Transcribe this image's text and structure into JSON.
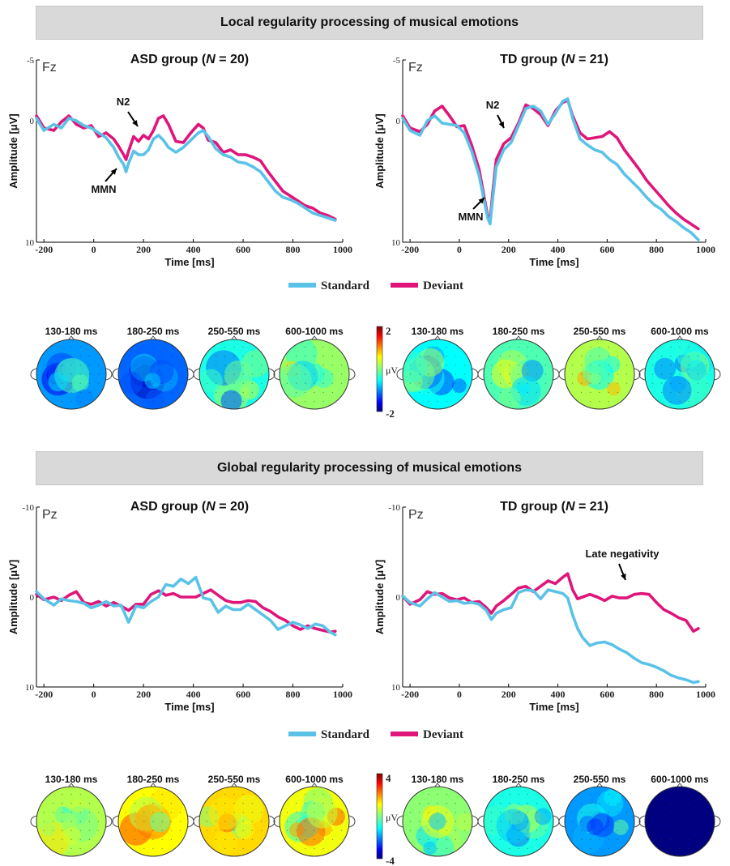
{
  "sections": [
    {
      "title": "Local regularity processing of musical emotions",
      "legend": {
        "standard": "Standard",
        "deviant": "Deviant"
      },
      "topo_scale": {
        "max": "2",
        "min": "-2",
        "unit": "μV"
      }
    },
    {
      "title": "Global regularity processing of musical emotions",
      "legend": {
        "standard": "Standard",
        "deviant": "Deviant"
      },
      "topo_scale": {
        "max": "4",
        "min": "-4",
        "unit": "μV"
      }
    }
  ],
  "colors": {
    "standard": "#5bc2e7",
    "deviant": "#e0157a"
  },
  "chart_data": [
    {
      "type": "line",
      "electrode": "Fz",
      "title_prefix": "ASD group (",
      "title_n": "N",
      "title_suffix": " = 20)",
      "xlabel": "Time [ms]",
      "ylabel": "Amplitude [μV]",
      "xlim": [
        -230,
        1000
      ],
      "ylim": [
        -5,
        10
      ],
      "y_inverted": true,
      "xticks": [
        "-200",
        "0",
        "200",
        "400",
        "600",
        "800",
        "1000"
      ],
      "yticks": [
        "-5",
        "0",
        "10"
      ],
      "series": [
        {
          "name": "Standard",
          "x": [
            -230,
            -200,
            -160,
            -130,
            -100,
            -70,
            -40,
            -10,
            20,
            50,
            80,
            100,
            120,
            130,
            140,
            160,
            180,
            200,
            220,
            240,
            260,
            280,
            300,
            330,
            360,
            390,
            420,
            440,
            460,
            490,
            520,
            550,
            580,
            610,
            640,
            670,
            700,
            730,
            760,
            790,
            820,
            850,
            880,
            910,
            940,
            970
          ],
          "y": [
            -0.2,
            0.8,
            0.3,
            0.6,
            -0.2,
            0.0,
            0.4,
            0.6,
            1.0,
            1.4,
            2.2,
            3.0,
            3.6,
            4.2,
            3.5,
            2.5,
            2.8,
            2.8,
            2.4,
            1.5,
            1.2,
            1.6,
            2.2,
            2.6,
            2.2,
            1.6,
            1.0,
            0.8,
            1.3,
            2.3,
            2.8,
            3.0,
            3.4,
            3.5,
            3.8,
            4.2,
            5.0,
            5.8,
            6.3,
            6.5,
            6.8,
            7.2,
            7.6,
            7.8,
            8.0,
            8.2
          ]
        },
        {
          "name": "Deviant",
          "x": [
            -230,
            -200,
            -160,
            -130,
            -100,
            -70,
            -40,
            -10,
            20,
            50,
            80,
            100,
            120,
            130,
            140,
            160,
            180,
            200,
            220,
            240,
            260,
            280,
            300,
            330,
            360,
            390,
            420,
            440,
            460,
            490,
            520,
            550,
            580,
            610,
            640,
            670,
            700,
            730,
            760,
            790,
            820,
            850,
            880,
            910,
            940,
            970
          ],
          "y": [
            -0.4,
            0.6,
            0.8,
            0.1,
            -0.4,
            0.3,
            0.6,
            0.4,
            1.3,
            1.0,
            1.5,
            2.1,
            2.8,
            3.2,
            2.5,
            1.3,
            1.7,
            1.2,
            1.5,
            0.8,
            -0.2,
            -0.4,
            0.3,
            1.7,
            1.8,
            1.0,
            0.3,
            0.6,
            1.6,
            1.8,
            2.6,
            2.4,
            2.8,
            2.8,
            3.0,
            3.3,
            4.2,
            5.0,
            5.8,
            6.2,
            6.6,
            7.0,
            7.2,
            7.6,
            7.8,
            8.1
          ]
        }
      ],
      "annotations": [
        "N2",
        "MMN"
      ]
    },
    {
      "type": "line",
      "electrode": "Fz",
      "title_prefix": "TD group (",
      "title_n": "N",
      "title_suffix": " = 21)",
      "xlabel": "Time [ms]",
      "ylabel": "Amplitude [μV]",
      "xlim": [
        -230,
        1000
      ],
      "ylim": [
        -5,
        10
      ],
      "y_inverted": true,
      "xticks": [
        "-200",
        "0",
        "200",
        "400",
        "600",
        "800",
        "1000"
      ],
      "yticks": [
        "-5",
        "0",
        "10"
      ],
      "series": [
        {
          "name": "Standard",
          "x": [
            -230,
            -200,
            -160,
            -130,
            -100,
            -70,
            -40,
            -10,
            20,
            50,
            80,
            100,
            115,
            125,
            135,
            150,
            180,
            210,
            240,
            270,
            300,
            330,
            360,
            390,
            420,
            440,
            460,
            490,
            520,
            550,
            580,
            610,
            640,
            670,
            700,
            730,
            760,
            790,
            820,
            850,
            880,
            910,
            940,
            970
          ],
          "y": [
            -0.2,
            0.8,
            1.2,
            0.0,
            -0.4,
            0.2,
            0.3,
            0.4,
            1.0,
            2.5,
            4.5,
            6.5,
            8.0,
            8.5,
            6.5,
            3.8,
            2.4,
            1.8,
            0.4,
            -1.0,
            -1.2,
            -0.8,
            0.3,
            -0.6,
            -1.6,
            -1.8,
            -0.2,
            1.5,
            2.0,
            2.4,
            2.6,
            3.2,
            3.6,
            4.4,
            5.0,
            5.6,
            6.3,
            6.9,
            7.3,
            7.9,
            8.3,
            8.8,
            9.2,
            9.8
          ]
        },
        {
          "name": "Deviant",
          "x": [
            -230,
            -200,
            -160,
            -130,
            -100,
            -70,
            -40,
            -10,
            20,
            50,
            80,
            100,
            115,
            125,
            135,
            150,
            180,
            210,
            240,
            270,
            300,
            330,
            360,
            390,
            420,
            440,
            460,
            490,
            520,
            550,
            580,
            610,
            640,
            670,
            700,
            730,
            760,
            790,
            820,
            850,
            880,
            910,
            940,
            970
          ],
          "y": [
            -0.4,
            0.6,
            0.9,
            0.3,
            -0.8,
            -1.2,
            -0.4,
            0.5,
            0.4,
            2.0,
            4.0,
            6.2,
            7.8,
            8.2,
            6.0,
            3.2,
            1.9,
            1.4,
            0.2,
            -1.3,
            -1.0,
            -0.5,
            0.4,
            -0.8,
            -1.5,
            -1.7,
            -0.4,
            1.0,
            1.5,
            1.4,
            1.3,
            0.9,
            1.4,
            2.4,
            3.2,
            4.0,
            4.9,
            5.6,
            6.3,
            7.0,
            7.6,
            8.1,
            8.5,
            8.9
          ]
        }
      ],
      "annotations": [
        "N2",
        "MMN"
      ]
    },
    {
      "type": "line",
      "electrode": "Pz",
      "title_prefix": "ASD group (",
      "title_n": "N",
      "title_suffix": " = 20)",
      "xlabel": "Time [ms]",
      "ylabel": "Amplitude [μV]",
      "xlim": [
        -230,
        1000
      ],
      "ylim": [
        -10,
        10
      ],
      "y_inverted": true,
      "xticks": [
        "-200",
        "0",
        "200",
        "400",
        "600",
        "800",
        "1000"
      ],
      "yticks": [
        "-10",
        "0",
        "10"
      ],
      "series": [
        {
          "name": "Standard",
          "x": [
            -230,
            -200,
            -160,
            -130,
            -100,
            -70,
            -40,
            -10,
            20,
            50,
            80,
            110,
            140,
            170,
            200,
            230,
            260,
            290,
            320,
            350,
            380,
            410,
            440,
            470,
            500,
            530,
            560,
            590,
            620,
            650,
            680,
            710,
            740,
            770,
            800,
            830,
            860,
            890,
            920,
            950,
            970
          ],
          "y": [
            -0.6,
            0.2,
            0.9,
            0.2,
            0.4,
            0.5,
            0.7,
            1.2,
            0.9,
            0.5,
            1.0,
            0.9,
            2.8,
            1.0,
            1.2,
            0.5,
            0.0,
            -1.4,
            -1.2,
            -2.0,
            -1.5,
            -2.2,
            0.1,
            0.3,
            1.7,
            1.0,
            1.4,
            1.4,
            0.8,
            1.4,
            2.0,
            2.6,
            3.6,
            3.2,
            2.8,
            3.1,
            3.5,
            3.0,
            3.2,
            3.9,
            4.2
          ]
        },
        {
          "name": "Deviant",
          "x": [
            -230,
            -200,
            -160,
            -130,
            -100,
            -70,
            -40,
            -10,
            20,
            50,
            80,
            110,
            140,
            170,
            200,
            230,
            260,
            290,
            320,
            350,
            380,
            410,
            440,
            470,
            500,
            530,
            560,
            590,
            620,
            650,
            680,
            710,
            740,
            770,
            800,
            830,
            860,
            890,
            920,
            950,
            970
          ],
          "y": [
            -0.3,
            0.3,
            0.0,
            0.4,
            -0.2,
            -0.6,
            0.6,
            0.8,
            0.5,
            1.0,
            0.6,
            1.0,
            1.5,
            0.8,
            0.8,
            -0.3,
            -0.7,
            -0.2,
            -0.4,
            0.0,
            0.0,
            0.0,
            -0.4,
            -0.8,
            -0.2,
            0.4,
            0.6,
            0.6,
            0.4,
            0.5,
            1.2,
            1.6,
            2.2,
            2.6,
            3.2,
            3.6,
            3.2,
            3.5,
            3.7,
            3.9,
            3.8
          ]
        }
      ]
    },
    {
      "type": "line",
      "electrode": "Pz",
      "title_prefix": "TD group (",
      "title_n": "N",
      "title_suffix": " = 21)",
      "xlabel": "Time [ms]",
      "ylabel": "Amplitude [μV]",
      "xlim": [
        -230,
        1000
      ],
      "ylim": [
        -10,
        10
      ],
      "y_inverted": true,
      "xticks": [
        "-200",
        "0",
        "200",
        "400",
        "600",
        "800",
        "1000"
      ],
      "yticks": [
        "-10",
        "0",
        "10"
      ],
      "series": [
        {
          "name": "Standard",
          "x": [
            -230,
            -200,
            -160,
            -130,
            -100,
            -70,
            -40,
            -10,
            20,
            50,
            80,
            110,
            130,
            150,
            180,
            210,
            240,
            270,
            300,
            330,
            360,
            390,
            420,
            440,
            460,
            480,
            500,
            530,
            560,
            590,
            620,
            650,
            680,
            710,
            740,
            770,
            800,
            830,
            860,
            890,
            920,
            950,
            970
          ],
          "y": [
            -0.1,
            0.6,
            1.0,
            0.2,
            -0.5,
            0.0,
            0.5,
            0.4,
            0.7,
            0.6,
            0.8,
            1.5,
            2.5,
            1.8,
            1.4,
            1.2,
            -0.5,
            -0.8,
            -0.7,
            0.2,
            -0.8,
            -0.6,
            -0.4,
            0.1,
            2.0,
            3.5,
            4.5,
            5.4,
            5.1,
            5.0,
            5.3,
            5.8,
            6.2,
            6.8,
            7.3,
            7.5,
            7.8,
            8.2,
            8.7,
            9.0,
            9.2,
            9.5,
            9.4
          ]
        },
        {
          "name": "Deviant",
          "x": [
            -230,
            -200,
            -160,
            -130,
            -100,
            -70,
            -40,
            -10,
            20,
            50,
            80,
            110,
            130,
            150,
            180,
            210,
            240,
            270,
            300,
            330,
            360,
            390,
            420,
            440,
            460,
            480,
            500,
            530,
            560,
            590,
            620,
            650,
            680,
            710,
            740,
            770,
            800,
            830,
            860,
            890,
            920,
            950,
            970
          ],
          "y": [
            -0.1,
            0.8,
            0.3,
            -0.6,
            -0.3,
            -0.4,
            0.1,
            0.3,
            0.1,
            0.6,
            0.5,
            1.2,
            1.8,
            1.0,
            0.4,
            -0.3,
            -1.0,
            -1.2,
            -0.6,
            -1.2,
            -1.8,
            -1.5,
            -2.2,
            -2.6,
            -0.8,
            0.2,
            0.0,
            -0.3,
            0.0,
            0.4,
            -0.1,
            0.1,
            0.1,
            -0.3,
            -0.4,
            -0.3,
            0.6,
            1.4,
            1.8,
            2.3,
            2.6,
            3.8,
            3.5
          ]
        }
      ],
      "annotations": [
        "Late negativity"
      ]
    }
  ],
  "topomaps": {
    "local_asd": [
      {
        "label": "130-180 ms",
        "base": -0.9
      },
      {
        "label": "180-250 ms",
        "base": -1.1
      },
      {
        "label": "250-550 ms",
        "base": -0.4
      },
      {
        "label": "600-1000 ms",
        "base": 0.1
      }
    ],
    "local_td": [
      {
        "label": "130-180 ms",
        "base": -0.5
      },
      {
        "label": "180-250 ms",
        "base": -0.2
      },
      {
        "label": "250-550 ms",
        "base": 0.2
      },
      {
        "label": "600-1000 ms",
        "base": -0.4
      }
    ],
    "global_asd": [
      {
        "label": "130-180 ms",
        "base": 0.4
      },
      {
        "label": "180-250 ms",
        "base": 1.0
      },
      {
        "label": "250-550 ms",
        "base": 1.3
      },
      {
        "label": "600-1000 ms",
        "base": 0.9
      }
    ],
    "global_td": [
      {
        "label": "130-180 ms",
        "base": 0.1
      },
      {
        "label": "180-250 ms",
        "base": -0.8
      },
      {
        "label": "250-550 ms",
        "base": -1.8
      },
      {
        "label": "600-1000 ms",
        "base": -4.0
      }
    ]
  }
}
